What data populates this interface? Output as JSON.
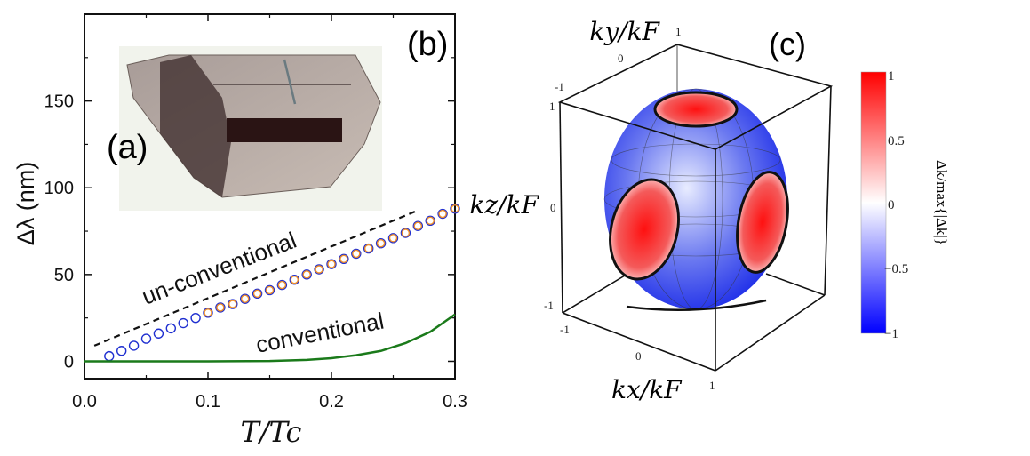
{
  "panel_labels": {
    "a": "(a)",
    "b": "(b)",
    "c": "(c)"
  },
  "chart_data": [
    {
      "type": "scatter",
      "xlabel": "T/Tc",
      "ylabel": "Δλ (nm)",
      "xlim": [
        0.0,
        0.3
      ],
      "ylim": [
        -10,
        200
      ],
      "xticks": [
        "0.0",
        "0.1",
        "0.2",
        "0.3"
      ],
      "yticks": [
        "0",
        "50",
        "100",
        "150"
      ],
      "xtick_values": [
        0.0,
        0.1,
        0.2,
        0.3
      ],
      "ytick_values": [
        0,
        50,
        100,
        150
      ],
      "grid": false,
      "annotations": {
        "unconventional": "un-conventional",
        "conventional": "conventional"
      },
      "series": [
        {
          "marker": "open-circle",
          "color": "#1f2fd0",
          "x": [
            0.02,
            0.03,
            0.04,
            0.05,
            0.06,
            0.07,
            0.08,
            0.09,
            0.1,
            0.11,
            0.12,
            0.13,
            0.14,
            0.15,
            0.16,
            0.17,
            0.18,
            0.19,
            0.2,
            0.21,
            0.22,
            0.23,
            0.24,
            0.25,
            0.26,
            0.27,
            0.28,
            0.29,
            0.3
          ],
          "y": [
            3,
            6,
            9,
            13,
            16,
            19,
            22,
            25,
            28,
            31,
            33,
            36,
            39,
            41,
            44,
            47,
            50,
            53,
            56,
            59,
            62,
            65,
            68,
            71,
            74,
            78,
            81,
            85,
            88
          ]
        },
        {
          "marker": "open-circle",
          "color": "#f0902a",
          "x": [
            0.1,
            0.11,
            0.12,
            0.13,
            0.14,
            0.15,
            0.16,
            0.17,
            0.18,
            0.19,
            0.2,
            0.21,
            0.22,
            0.23,
            0.24,
            0.25,
            0.26,
            0.27,
            0.28,
            0.29,
            0.3
          ],
          "y": [
            28,
            31,
            33,
            36,
            39,
            41,
            44,
            47,
            50,
            53,
            56,
            59,
            62,
            65,
            68,
            71,
            74,
            78,
            81,
            85,
            88
          ]
        },
        {
          "type": "line",
          "style": "dashed",
          "color": "#111111",
          "x": [
            0.008,
            0.27
          ],
          "y": [
            9,
            87
          ]
        },
        {
          "type": "line",
          "style": "solid",
          "color": "#1a7a1a",
          "x": [
            0.0,
            0.1,
            0.15,
            0.18,
            0.2,
            0.22,
            0.24,
            0.26,
            0.28,
            0.3
          ],
          "y": [
            0,
            0,
            0.2,
            0.8,
            1.8,
            3.5,
            6,
            10.5,
            17,
            27
          ]
        }
      ]
    },
    {
      "type": "heatmap",
      "description_axes": {
        "x": "kx/kF",
        "y": "ky/kF",
        "z": "kz/kF"
      },
      "axis_ticks": [
        "-1",
        "0",
        "1"
      ],
      "colorbar": {
        "label": "Δk/max{|Δk|}",
        "ticks": [
          "1",
          "0.5",
          "0",
          "−0.5",
          "−1"
        ],
        "range": [
          -1,
          1
        ],
        "colors": {
          "max": "#ff0000",
          "mid": "#ffffff",
          "min": "#0000ff"
        }
      }
    }
  ]
}
